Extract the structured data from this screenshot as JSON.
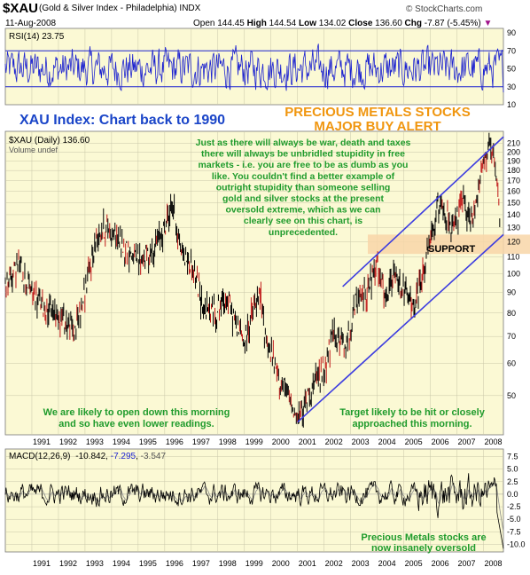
{
  "header": {
    "symbol": "$XAU",
    "name": "(Gold & Silver Index - Philadelphia)",
    "exchange": "INDX",
    "date": "11-Aug-2008",
    "open_label": "Open",
    "open": "144.45",
    "high_label": "High",
    "high": "144.54",
    "low_label": "Low",
    "low": "134.02",
    "close_label": "Close",
    "close": "136.60",
    "chg_label": "Chg",
    "chg": "-7.87 (-5.45%)",
    "brand": "© StockCharts.com"
  },
  "colors": {
    "panel_bg": "#fbf9d4",
    "grid": "#c8c6a8",
    "rsi_line": "#1c22d0",
    "rsi_level": "#1c22d0",
    "price_bar": "#000000",
    "price_down": "#c01818",
    "trendline": "#3c3ce0",
    "support_band": "#f8d6a8",
    "annotation_green": "#1f9b2c",
    "title_blue": "#1a45c8",
    "alert_orange": "#f0960f",
    "macd_line": "#000000",
    "macd_signal": "#888888"
  },
  "annotations": {
    "title": "XAU Index: Chart back to 1990",
    "alert_line1": "PRECIOUS METALS STOCKS",
    "alert_line2": "MAJOR BUY ALERT",
    "quote": [
      "Just as there will always be war, death and taxes",
      "there will always be unbridled stupidity in free",
      "markets - i.e. you are free to be as dumb as you",
      "like. You couldn't find a better example of",
      "outright stupidity than someone selling",
      "gold and silver stocks at the present",
      "oversold extreme, which as we can",
      "clearly see on this chart, is",
      "unprecedented."
    ],
    "support": "SUPPORT",
    "open_down": [
      "We are likely to open down this morning",
      "and so have even lower readings."
    ],
    "target": [
      "Target likely to be hit or closely",
      "approached this morning."
    ],
    "oversold": [
      "Precious Metals stocks are",
      "now insanely oversold"
    ]
  },
  "chart_data": [
    {
      "type": "line",
      "panel": "rsi",
      "label": "RSI(14) 23.75",
      "y_ticks": [
        10,
        30,
        50,
        70,
        90
      ],
      "ylim": [
        10,
        95
      ],
      "levels": [
        30,
        70
      ],
      "last": 23.75
    },
    {
      "type": "line",
      "panel": "price",
      "label": "$XAU (Daily) 136.60",
      "volume_label": "Volume undef",
      "scale": "log",
      "ylim": [
        40,
        225
      ],
      "y_ticks": [
        50,
        60,
        70,
        80,
        90,
        100,
        110,
        120,
        130,
        140,
        150,
        160,
        170,
        180,
        190,
        200,
        210
      ],
      "x_ticks": [
        "1991",
        "1992",
        "1993",
        "1994",
        "1995",
        "1996",
        "1997",
        "1998",
        "1999",
        "2000",
        "2001",
        "2002",
        "2003",
        "2004",
        "2005",
        "2006",
        "2007",
        "2008"
      ],
      "x": [
        1990.0,
        1990.5,
        1991.0,
        1991.5,
        1992.0,
        1992.6,
        1993.0,
        1993.5,
        1993.9,
        1994.4,
        1995.0,
        1995.5,
        1996.0,
        1996.3,
        1996.6,
        1997.0,
        1997.5,
        1997.9,
        1998.3,
        1998.7,
        1999.0,
        1999.3,
        1999.6,
        1999.8,
        2000.3,
        2000.8,
        2001.0,
        2001.5,
        2002.0,
        2002.4,
        2002.8,
        2003.2,
        2003.6,
        2004.0,
        2004.3,
        2004.6,
        2005.0,
        2005.4,
        2006.0,
        2006.4,
        2006.8,
        2007.2,
        2007.6,
        2007.9,
        2008.2,
        2008.4,
        2008.61
      ],
      "y": [
        95,
        105,
        90,
        82,
        80,
        72,
        90,
        128,
        130,
        118,
        108,
        112,
        130,
        150,
        115,
        105,
        82,
        80,
        88,
        75,
        68,
        80,
        88,
        70,
        55,
        48,
        43,
        52,
        58,
        72,
        65,
        85,
        90,
        105,
        85,
        98,
        92,
        82,
        120,
        155,
        125,
        150,
        135,
        180,
        205,
        190,
        136.6
      ],
      "trendlines": [
        {
          "from": [
            2001.0,
            43
          ],
          "to": [
            2008.75,
            125
          ]
        },
        {
          "from": [
            2002.7,
            93
          ],
          "to": [
            2008.75,
            218
          ]
        }
      ],
      "support_band": [
        112,
        125
      ]
    },
    {
      "type": "line",
      "panel": "macd",
      "label": "MACD(12,26,9)",
      "values_text": [
        "-10.842",
        "-7.295",
        "-3.547"
      ],
      "y_ticks": [
        7.5,
        5.0,
        2.5,
        0.0,
        -2.5,
        -5.0,
        -7.5,
        -10.0
      ],
      "y_tick_labels": [
        "7.5",
        "5.0",
        "2.5",
        "0.0",
        "-2.5",
        "-5.0",
        "-7.5",
        "-10.0"
      ],
      "ylim": [
        -11.5,
        9
      ],
      "last": {
        "macd": -10.842,
        "signal": -7.295,
        "histogram": -3.547
      }
    }
  ]
}
